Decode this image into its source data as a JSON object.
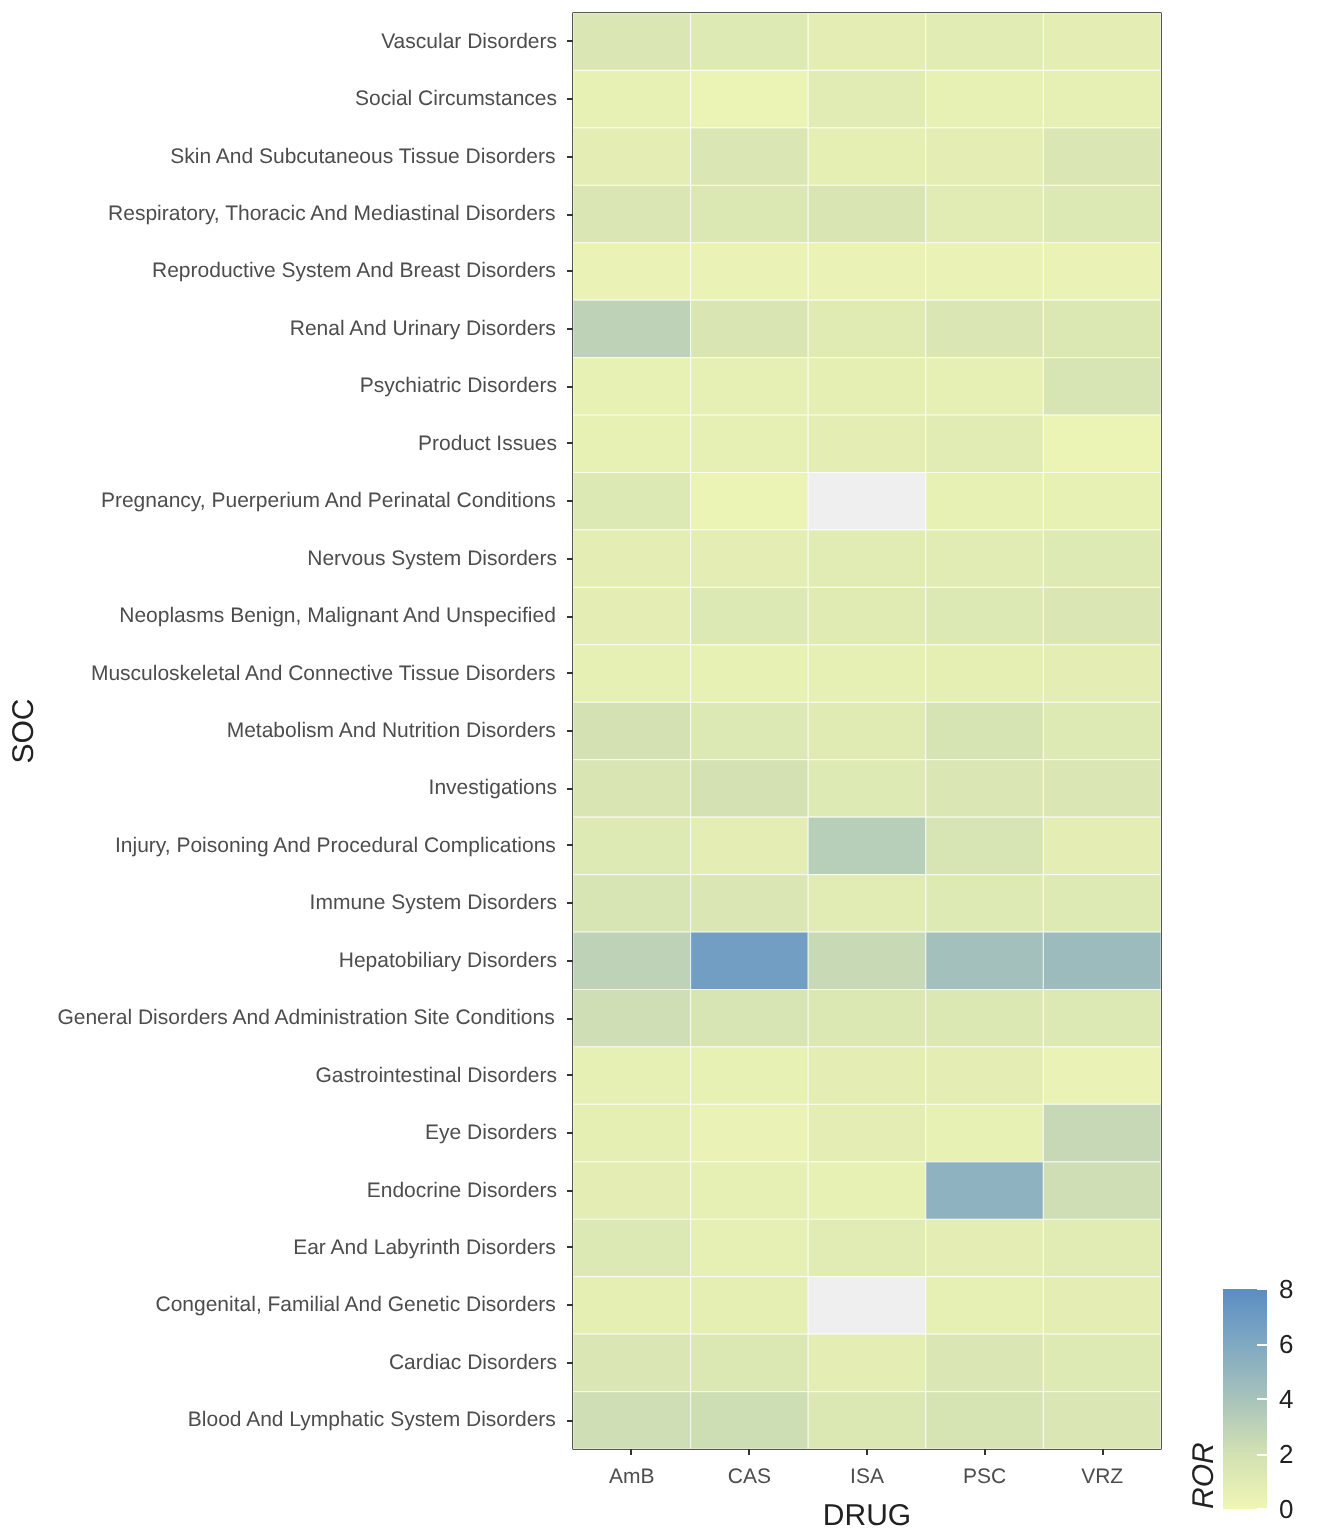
{
  "chart_data": {
    "type": "heatmap",
    "xlabel": "DRUG",
    "ylabel": "SOC",
    "clabel": "ROR",
    "categories": [
      "AmB",
      "CAS",
      "ISA",
      "PSC",
      "VRZ"
    ],
    "y_categories": [
      "Vascular Disorders",
      "Social Circumstances",
      "Skin And Subcutaneous Tissue Disorders",
      "Respiratory, Thoracic And Mediastinal Disorders",
      "Reproductive System And Breast Disorders",
      "Renal And Urinary Disorders",
      "Psychiatric Disorders",
      "Product Issues",
      "Pregnancy, Puerperium And Perinatal Conditions",
      "Nervous System Disorders",
      "Neoplasms Benign, Malignant And Unspecified",
      "Musculoskeletal And Connective Tissue Disorders",
      "Metabolism And Nutrition Disorders",
      "Investigations",
      "Injury, Poisoning And Procedural Complications",
      "Immune System Disorders",
      "Hepatobiliary Disorders",
      "General Disorders And Administration Site Conditions",
      "Gastrointestinal Disorders",
      "Eye Disorders",
      "Endocrine Disorders",
      "Ear And Labyrinth Disorders",
      "Congenital, Familial And Genetic Disorders",
      "Cardiac Disorders",
      "Blood And Lymphatic System Disorders"
    ],
    "cells": [
      [
        1.5,
        1.2,
        0.8,
        1.0,
        0.8
      ],
      [
        0.5,
        0.3,
        1.0,
        0.5,
        0.6
      ],
      [
        0.8,
        1.5,
        0.7,
        0.9,
        1.5
      ],
      [
        1.5,
        1.4,
        1.6,
        1.0,
        1.3
      ],
      [
        0.4,
        0.4,
        0.4,
        0.4,
        0.4
      ],
      [
        3.0,
        1.6,
        1.1,
        1.5,
        1.4
      ],
      [
        0.5,
        0.6,
        0.7,
        0.6,
        1.7
      ],
      [
        0.5,
        0.6,
        0.9,
        1.0,
        0.3
      ],
      [
        1.3,
        0.3,
        null,
        0.5,
        0.5
      ],
      [
        0.8,
        0.8,
        1.0,
        1.0,
        1.2
      ],
      [
        0.8,
        1.3,
        1.1,
        1.3,
        1.5
      ],
      [
        0.6,
        0.5,
        0.6,
        0.7,
        0.9
      ],
      [
        2.0,
        1.3,
        1.1,
        1.8,
        1.2
      ],
      [
        1.6,
        2.0,
        1.2,
        1.5,
        1.5
      ],
      [
        1.2,
        0.9,
        3.3,
        1.7,
        0.8
      ],
      [
        1.7,
        1.5,
        1.0,
        1.2,
        1.2
      ],
      [
        3.0,
        6.8,
        2.5,
        4.2,
        4.6
      ],
      [
        2.2,
        1.7,
        1.4,
        1.4,
        1.3
      ],
      [
        0.6,
        0.5,
        0.9,
        0.9,
        0.4
      ],
      [
        0.7,
        0.4,
        0.8,
        0.5,
        2.6
      ],
      [
        0.9,
        0.6,
        0.5,
        5.3,
        2.2
      ],
      [
        1.3,
        0.6,
        1.0,
        0.8,
        1.0
      ],
      [
        0.7,
        0.7,
        null,
        0.6,
        0.8
      ],
      [
        1.5,
        1.4,
        0.9,
        1.5,
        1.2
      ],
      [
        2.2,
        2.3,
        1.4,
        1.8,
        1.5
      ]
    ],
    "clim": [
      0,
      8
    ],
    "cticks": [
      0,
      2,
      4,
      6,
      8
    ]
  }
}
